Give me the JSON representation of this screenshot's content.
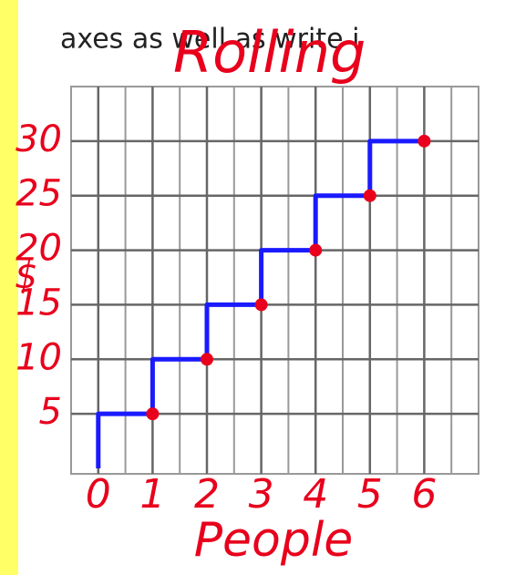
{
  "chart_data": {
    "type": "line",
    "subtitle": "axes as well as write i",
    "title": "Rolling",
    "xlabel": "People",
    "ylabel": "$",
    "xlim": [
      -0.5,
      7
    ],
    "ylim": [
      -0.5,
      35
    ],
    "xticks": [
      0,
      1,
      2,
      3,
      4,
      5,
      6
    ],
    "yticks": [
      5,
      10,
      15,
      20,
      25,
      30
    ],
    "grid": true,
    "series": [
      {
        "color": "#1a1aff",
        "x": [
          0,
          0,
          1,
          1,
          2,
          2,
          3,
          3,
          4,
          4,
          5,
          5,
          6
        ],
        "values": [
          0,
          5,
          5,
          10,
          10,
          15,
          15,
          20,
          20,
          25,
          25,
          30,
          30
        ]
      },
      {
        "color": "#e8001c",
        "markers": true,
        "x": [
          1,
          2,
          3,
          4,
          5,
          6
        ],
        "values": [
          5,
          10,
          15,
          20,
          25,
          30
        ]
      }
    ]
  }
}
